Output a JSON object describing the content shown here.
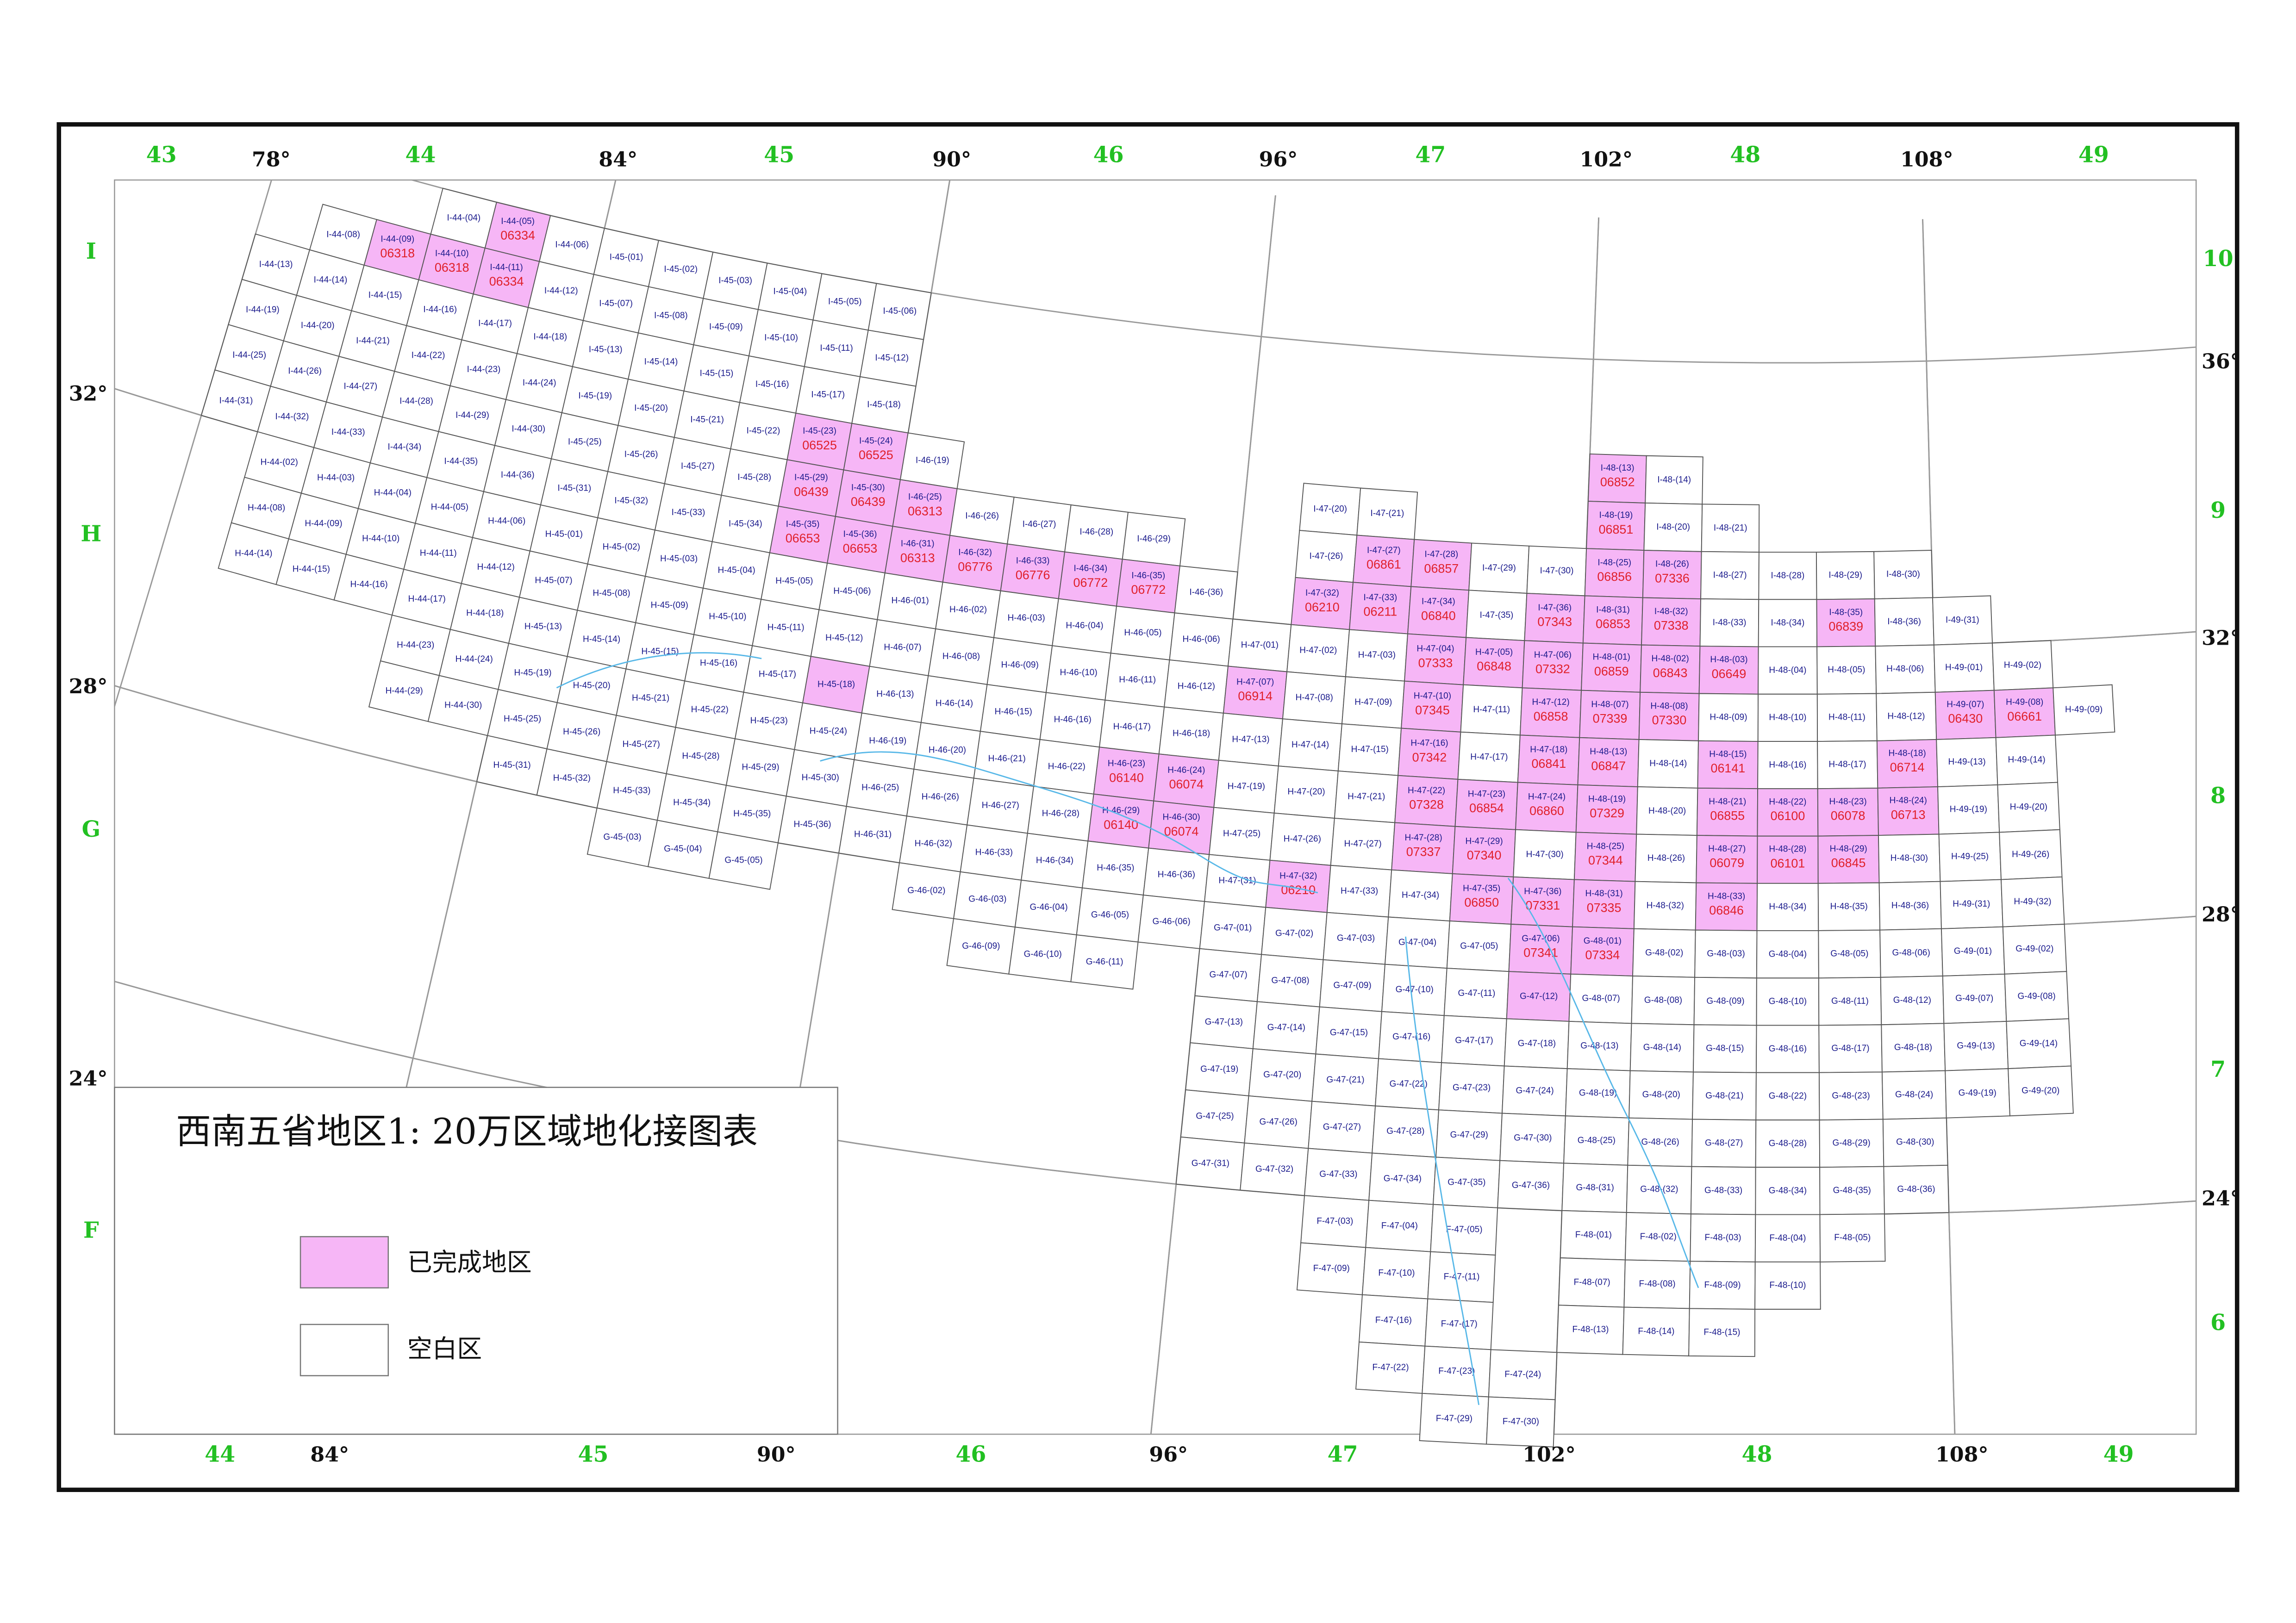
{
  "title": "西南五省地区1: 20万区域地化接图表",
  "done_color": "#f6b6f6",
  "legend": {
    "items": [
      {
        "label": "已完成地区",
        "color": "#f6b6f6"
      },
      {
        "label": "空白区",
        "color": "#ffffff"
      }
    ]
  },
  "top_zones": [
    "43",
    "44",
    "45",
    "46",
    "47",
    "48",
    "49"
  ],
  "top_lons": [
    {
      "value": 78,
      "label": "78°"
    },
    {
      "value": 84,
      "label": "84°"
    },
    {
      "value": 90,
      "label": "90°"
    },
    {
      "value": 96,
      "label": "96°"
    },
    {
      "value": 102,
      "label": "102°"
    },
    {
      "value": 108,
      "label": "108°"
    }
  ],
  "bottom_zones": [
    "44",
    "45",
    "46",
    "47",
    "48",
    "49"
  ],
  "bottom_lons": [
    {
      "value": 84,
      "label": "84°"
    },
    {
      "value": 90,
      "label": "90°"
    },
    {
      "value": 96,
      "label": "96°"
    },
    {
      "value": 102,
      "label": "102°"
    },
    {
      "value": 108,
      "label": "108°"
    }
  ],
  "left_letters": [
    "I",
    "H",
    "G",
    "F"
  ],
  "left_lats": [
    {
      "value": 32,
      "label": "32°"
    },
    {
      "value": 28,
      "label": "28°"
    },
    {
      "value": 24,
      "label": "24°"
    }
  ],
  "right_numbers": [
    "10",
    "9",
    "8",
    "7",
    "6"
  ],
  "right_lats": [
    {
      "value": 36,
      "label": "36°"
    },
    {
      "value": 32,
      "label": "32°"
    },
    {
      "value": 28,
      "label": "28°"
    },
    {
      "value": 24,
      "label": "24°"
    }
  ],
  "sheets": [
    {
      "id": "I-44-(04)"
    },
    {
      "id": "I-44-(05)",
      "code": "06334",
      "done": true
    },
    {
      "id": "I-44-(06)"
    },
    {
      "id": "I-44-(08)"
    },
    {
      "id": "I-44-(09)",
      "code": "06318",
      "done": true
    },
    {
      "id": "I-44-(10)",
      "code": "06318",
      "done": true
    },
    {
      "id": "I-44-(11)",
      "code": "06334",
      "done": true
    },
    {
      "id": "I-44-(12)"
    },
    {
      "id": "I-44-(13)"
    },
    {
      "id": "I-44-(14)"
    },
    {
      "id": "I-44-(15)"
    },
    {
      "id": "I-44-(16)"
    },
    {
      "id": "I-44-(17)"
    },
    {
      "id": "I-44-(18)"
    },
    {
      "id": "I-44-(19)"
    },
    {
      "id": "I-44-(20)"
    },
    {
      "id": "I-44-(21)"
    },
    {
      "id": "I-44-(22)"
    },
    {
      "id": "I-44-(23)"
    },
    {
      "id": "I-44-(24)"
    },
    {
      "id": "I-44-(25)"
    },
    {
      "id": "I-44-(26)"
    },
    {
      "id": "I-44-(27)"
    },
    {
      "id": "I-44-(28)"
    },
    {
      "id": "I-44-(29)"
    },
    {
      "id": "I-44-(30)"
    },
    {
      "id": "I-44-(31)"
    },
    {
      "id": "I-44-(32)"
    },
    {
      "id": "I-44-(33)"
    },
    {
      "id": "I-44-(34)"
    },
    {
      "id": "I-44-(35)"
    },
    {
      "id": "I-44-(36)"
    },
    {
      "id": "H-44-(02)"
    },
    {
      "id": "H-44-(03)"
    },
    {
      "id": "H-44-(04)"
    },
    {
      "id": "H-44-(05)"
    },
    {
      "id": "H-44-(06)"
    },
    {
      "id": "H-44-(08)"
    },
    {
      "id": "H-44-(09)"
    },
    {
      "id": "H-44-(10)"
    },
    {
      "id": "H-44-(11)"
    },
    {
      "id": "H-44-(12)"
    },
    {
      "id": "H-44-(14)"
    },
    {
      "id": "H-44-(15)"
    },
    {
      "id": "H-44-(16)"
    },
    {
      "id": "H-44-(17)"
    },
    {
      "id": "H-44-(18)"
    },
    {
      "id": "H-44-(23)"
    },
    {
      "id": "H-44-(24)"
    },
    {
      "id": "H-44-(29)"
    },
    {
      "id": "H-44-(30)"
    },
    {
      "id": "I-45-(01)"
    },
    {
      "id": "I-45-(02)"
    },
    {
      "id": "I-45-(03)"
    },
    {
      "id": "I-45-(04)"
    },
    {
      "id": "I-45-(05)"
    },
    {
      "id": "I-45-(06)"
    },
    {
      "id": "I-45-(07)"
    },
    {
      "id": "I-45-(08)"
    },
    {
      "id": "I-45-(09)"
    },
    {
      "id": "I-45-(10)"
    },
    {
      "id": "I-45-(11)"
    },
    {
      "id": "I-45-(12)"
    },
    {
      "id": "I-45-(13)"
    },
    {
      "id": "I-45-(14)"
    },
    {
      "id": "I-45-(15)"
    },
    {
      "id": "I-45-(16)"
    },
    {
      "id": "I-45-(17)"
    },
    {
      "id": "I-45-(18)"
    },
    {
      "id": "I-45-(19)"
    },
    {
      "id": "I-45-(20)"
    },
    {
      "id": "I-45-(21)"
    },
    {
      "id": "I-45-(22)"
    },
    {
      "id": "I-45-(23)",
      "code": "06525",
      "done": true
    },
    {
      "id": "I-45-(24)",
      "code": "06525",
      "done": true
    },
    {
      "id": "I-45-(25)"
    },
    {
      "id": "I-45-(26)"
    },
    {
      "id": "I-45-(27)"
    },
    {
      "id": "I-45-(28)"
    },
    {
      "id": "I-45-(29)",
      "code": "06439",
      "done": true
    },
    {
      "id": "I-45-(30)",
      "code": "06439",
      "done": true
    },
    {
      "id": "I-45-(31)"
    },
    {
      "id": "I-45-(32)"
    },
    {
      "id": "I-45-(33)"
    },
    {
      "id": "I-45-(34)"
    },
    {
      "id": "I-45-(35)",
      "code": "06653",
      "done": true
    },
    {
      "id": "I-45-(36)",
      "code": "06653",
      "done": true
    },
    {
      "id": "H-45-(01)"
    },
    {
      "id": "H-45-(02)"
    },
    {
      "id": "H-45-(03)"
    },
    {
      "id": "H-45-(04)"
    },
    {
      "id": "H-45-(05)"
    },
    {
      "id": "H-45-(06)"
    },
    {
      "id": "H-45-(07)"
    },
    {
      "id": "H-45-(08)"
    },
    {
      "id": "H-45-(09)"
    },
    {
      "id": "H-45-(10)"
    },
    {
      "id": "H-45-(11)"
    },
    {
      "id": "H-45-(12)"
    },
    {
      "id": "H-45-(13)"
    },
    {
      "id": "H-45-(14)"
    },
    {
      "id": "H-45-(15)"
    },
    {
      "id": "H-45-(16)"
    },
    {
      "id": "H-45-(17)"
    },
    {
      "id": "H-45-(18)",
      "done": true
    },
    {
      "id": "H-45-(19)"
    },
    {
      "id": "H-45-(20)"
    },
    {
      "id": "H-45-(21)"
    },
    {
      "id": "H-45-(22)"
    },
    {
      "id": "H-45-(23)"
    },
    {
      "id": "H-45-(24)"
    },
    {
      "id": "H-45-(25)"
    },
    {
      "id": "H-45-(26)"
    },
    {
      "id": "H-45-(27)"
    },
    {
      "id": "H-45-(28)"
    },
    {
      "id": "H-45-(29)"
    },
    {
      "id": "H-45-(30)"
    },
    {
      "id": "H-45-(31)"
    },
    {
      "id": "H-45-(32)"
    },
    {
      "id": "H-45-(33)"
    },
    {
      "id": "H-45-(34)"
    },
    {
      "id": "H-45-(35)"
    },
    {
      "id": "H-45-(36)"
    },
    {
      "id": "G-45-(03)"
    },
    {
      "id": "G-45-(04)"
    },
    {
      "id": "G-45-(05)"
    },
    {
      "id": "I-46-(19)"
    },
    {
      "id": "I-46-(25)",
      "code": "06313",
      "done": true
    },
    {
      "id": "I-46-(26)"
    },
    {
      "id": "I-46-(27)"
    },
    {
      "id": "I-46-(28)"
    },
    {
      "id": "I-46-(29)"
    },
    {
      "id": "I-46-(31)",
      "code": "06313",
      "done": true
    },
    {
      "id": "I-46-(32)",
      "code": "06776",
      "done": true
    },
    {
      "id": "I-46-(33)",
      "code": "06776",
      "done": true
    },
    {
      "id": "I-46-(34)",
      "code": "06772",
      "done": true
    },
    {
      "id": "I-46-(35)",
      "code": "06772",
      "done": true
    },
    {
      "id": "I-46-(36)"
    },
    {
      "id": "H-46-(01)"
    },
    {
      "id": "H-46-(02)"
    },
    {
      "id": "H-46-(03)"
    },
    {
      "id": "H-46-(04)"
    },
    {
      "id": "H-46-(05)"
    },
    {
      "id": "H-46-(06)"
    },
    {
      "id": "H-46-(07)"
    },
    {
      "id": "H-46-(08)"
    },
    {
      "id": "H-46-(09)"
    },
    {
      "id": "H-46-(10)"
    },
    {
      "id": "H-46-(11)"
    },
    {
      "id": "H-46-(12)"
    },
    {
      "id": "H-46-(13)"
    },
    {
      "id": "H-46-(14)"
    },
    {
      "id": "H-46-(15)"
    },
    {
      "id": "H-46-(16)"
    },
    {
      "id": "H-46-(17)"
    },
    {
      "id": "H-46-(18)"
    },
    {
      "id": "H-46-(19)"
    },
    {
      "id": "H-46-(20)"
    },
    {
      "id": "H-46-(21)"
    },
    {
      "id": "H-46-(22)"
    },
    {
      "id": "H-46-(23)",
      "code": "06140",
      "done": true
    },
    {
      "id": "H-46-(24)",
      "code": "06074",
      "done": true
    },
    {
      "id": "H-46-(25)"
    },
    {
      "id": "H-46-(26)"
    },
    {
      "id": "H-46-(27)"
    },
    {
      "id": "H-46-(28)"
    },
    {
      "id": "H-46-(29)",
      "code": "06140",
      "done": true
    },
    {
      "id": "H-46-(30)",
      "code": "06074",
      "done": true
    },
    {
      "id": "H-46-(31)"
    },
    {
      "id": "H-46-(32)"
    },
    {
      "id": "H-46-(33)"
    },
    {
      "id": "H-46-(34)"
    },
    {
      "id": "H-46-(35)"
    },
    {
      "id": "H-46-(36)"
    },
    {
      "id": "G-46-(02)"
    },
    {
      "id": "G-46-(03)"
    },
    {
      "id": "G-46-(04)"
    },
    {
      "id": "G-46-(05)"
    },
    {
      "id": "G-46-(06)"
    },
    {
      "id": "G-46-(09)"
    },
    {
      "id": "G-46-(10)"
    },
    {
      "id": "G-46-(11)"
    },
    {
      "id": "I-47-(20)"
    },
    {
      "id": "I-47-(21)"
    },
    {
      "id": "I-47-(26)"
    },
    {
      "id": "I-47-(27)",
      "code": "06861",
      "done": true
    },
    {
      "id": "I-47-(28)",
      "code": "06857",
      "done": true
    },
    {
      "id": "I-47-(29)"
    },
    {
      "id": "I-47-(30)"
    },
    {
      "id": "I-47-(32)",
      "code": "06210",
      "done": true
    },
    {
      "id": "I-47-(33)",
      "code": "06211",
      "done": true
    },
    {
      "id": "I-47-(34)",
      "code": "06840",
      "done": true
    },
    {
      "id": "I-47-(35)"
    },
    {
      "id": "I-47-(36)",
      "code": "07343",
      "done": true
    },
    {
      "id": "H-47-(01)"
    },
    {
      "id": "H-47-(02)"
    },
    {
      "id": "H-47-(03)"
    },
    {
      "id": "H-47-(04)",
      "code": "07333",
      "done": true
    },
    {
      "id": "H-47-(05)",
      "code": "06848",
      "done": true
    },
    {
      "id": "H-47-(06)",
      "code": "07332",
      "done": true
    },
    {
      "id": "H-47-(07)",
      "code": "06914",
      "done": true
    },
    {
      "id": "H-47-(08)"
    },
    {
      "id": "H-47-(09)"
    },
    {
      "id": "H-47-(10)",
      "code": "07345",
      "done": true
    },
    {
      "id": "H-47-(11)"
    },
    {
      "id": "H-47-(12)",
      "code": "06858",
      "done": true
    },
    {
      "id": "H-47-(13)"
    },
    {
      "id": "H-47-(14)"
    },
    {
      "id": "H-47-(15)"
    },
    {
      "id": "H-47-(16)",
      "code": "07342",
      "done": true
    },
    {
      "id": "H-47-(17)"
    },
    {
      "id": "H-47-(18)",
      "code": "06841",
      "done": true
    },
    {
      "id": "H-47-(19)"
    },
    {
      "id": "H-47-(20)"
    },
    {
      "id": "H-47-(21)"
    },
    {
      "id": "H-47-(22)",
      "code": "07328",
      "done": true
    },
    {
      "id": "H-47-(23)",
      "code": "06854",
      "done": true
    },
    {
      "id": "H-47-(24)",
      "code": "06860",
      "done": true
    },
    {
      "id": "H-47-(25)"
    },
    {
      "id": "H-47-(26)"
    },
    {
      "id": "H-47-(27)"
    },
    {
      "id": "H-47-(28)",
      "code": "07337",
      "done": true
    },
    {
      "id": "H-47-(29)",
      "code": "07340",
      "done": true
    },
    {
      "id": "H-47-(30)"
    },
    {
      "id": "H-47-(31)"
    },
    {
      "id": "H-47-(32)",
      "code": "06210",
      "done": true
    },
    {
      "id": "H-47-(33)"
    },
    {
      "id": "H-47-(34)"
    },
    {
      "id": "H-47-(35)",
      "code": "06850",
      "done": true
    },
    {
      "id": "H-47-(36)",
      "code": "07331",
      "done": true
    },
    {
      "id": "G-47-(01)"
    },
    {
      "id": "G-47-(02)"
    },
    {
      "id": "G-47-(03)"
    },
    {
      "id": "G-47-(04)"
    },
    {
      "id": "G-47-(05)"
    },
    {
      "id": "G-47-(06)",
      "code": "07341",
      "done": true
    },
    {
      "id": "G-47-(07)"
    },
    {
      "id": "G-47-(08)"
    },
    {
      "id": "G-47-(09)"
    },
    {
      "id": "G-47-(10)"
    },
    {
      "id": "G-47-(11)"
    },
    {
      "id": "G-47-(12)",
      "done": true
    },
    {
      "id": "G-47-(13)"
    },
    {
      "id": "G-47-(14)"
    },
    {
      "id": "G-47-(15)"
    },
    {
      "id": "G-47-(16)"
    },
    {
      "id": "G-47-(17)"
    },
    {
      "id": "G-47-(18)"
    },
    {
      "id": "G-47-(19)"
    },
    {
      "id": "G-47-(20)"
    },
    {
      "id": "G-47-(21)"
    },
    {
      "id": "G-47-(22)"
    },
    {
      "id": "G-47-(23)"
    },
    {
      "id": "G-47-(24)"
    },
    {
      "id": "G-47-(25)"
    },
    {
      "id": "G-47-(26)"
    },
    {
      "id": "G-47-(27)"
    },
    {
      "id": "G-47-(28)"
    },
    {
      "id": "G-47-(29)"
    },
    {
      "id": "G-47-(30)"
    },
    {
      "id": "G-47-(31)"
    },
    {
      "id": "G-47-(32)"
    },
    {
      "id": "G-47-(33)"
    },
    {
      "id": "G-47-(34)"
    },
    {
      "id": "G-47-(35)"
    },
    {
      "id": "G-47-(36)"
    },
    {
      "id": "F-47-(03)"
    },
    {
      "id": "F-47-(04)"
    },
    {
      "id": "F-47-(05)"
    },
    {
      "id": "F-47-(09)"
    },
    {
      "id": "F-47-(10)"
    },
    {
      "id": "F-47-(11)"
    },
    {
      "id": "F-47-(16)"
    },
    {
      "id": "F-47-(17)"
    },
    {
      "id": "F-47-(22)"
    },
    {
      "id": "F-47-(23)"
    },
    {
      "id": "F-47-(24)"
    },
    {
      "id": "F-47-(29)"
    },
    {
      "id": "F-47-(30)"
    },
    {
      "id": "I-48-(13)",
      "code": "06852",
      "done": true
    },
    {
      "id": "I-48-(14)"
    },
    {
      "id": "I-48-(19)",
      "code": "06851",
      "done": true
    },
    {
      "id": "I-48-(20)"
    },
    {
      "id": "I-48-(21)"
    },
    {
      "id": "I-48-(25)",
      "code": "06856",
      "done": true
    },
    {
      "id": "I-48-(26)",
      "code": "07336",
      "done": true
    },
    {
      "id": "I-48-(27)"
    },
    {
      "id": "I-48-(28)"
    },
    {
      "id": "I-48-(29)"
    },
    {
      "id": "I-48-(30)"
    },
    {
      "id": "I-48-(31)",
      "code": "06853",
      "done": true
    },
    {
      "id": "I-48-(32)",
      "code": "07338",
      "done": true
    },
    {
      "id": "I-48-(33)"
    },
    {
      "id": "I-48-(34)"
    },
    {
      "id": "I-48-(35)",
      "code": "06839",
      "done": true
    },
    {
      "id": "I-48-(36)"
    },
    {
      "id": "H-48-(01)",
      "code": "06859",
      "done": true
    },
    {
      "id": "H-48-(02)",
      "code": "06843",
      "done": true
    },
    {
      "id": "H-48-(03)",
      "code": "06649",
      "done": true
    },
    {
      "id": "H-48-(04)"
    },
    {
      "id": "H-48-(05)"
    },
    {
      "id": "H-48-(06)"
    },
    {
      "id": "H-48-(07)",
      "code": "07339",
      "done": true
    },
    {
      "id": "H-48-(08)",
      "code": "07330",
      "done": true
    },
    {
      "id": "H-48-(09)"
    },
    {
      "id": "H-48-(10)"
    },
    {
      "id": "H-48-(11)"
    },
    {
      "id": "H-48-(12)"
    },
    {
      "id": "H-48-(13)",
      "code": "06847",
      "done": true
    },
    {
      "id": "H-48-(14)"
    },
    {
      "id": "H-48-(15)",
      "code": "06141",
      "done": true
    },
    {
      "id": "H-48-(16)"
    },
    {
      "id": "H-48-(17)"
    },
    {
      "id": "H-48-(18)",
      "code": "06714",
      "done": true
    },
    {
      "id": "H-48-(19)",
      "code": "07329",
      "done": true
    },
    {
      "id": "H-48-(20)"
    },
    {
      "id": "H-48-(21)",
      "code": "06855",
      "done": true
    },
    {
      "id": "H-48-(22)",
      "code": "06100",
      "done": true
    },
    {
      "id": "H-48-(23)",
      "code": "06078",
      "done": true
    },
    {
      "id": "H-48-(24)",
      "code": "06713",
      "done": true
    },
    {
      "id": "H-48-(25)",
      "code": "07344",
      "done": true
    },
    {
      "id": "H-48-(26)"
    },
    {
      "id": "H-48-(27)",
      "code": "06079",
      "done": true
    },
    {
      "id": "H-48-(28)",
      "code": "06101",
      "done": true
    },
    {
      "id": "H-48-(29)",
      "code": "06845",
      "done": true
    },
    {
      "id": "H-48-(30)"
    },
    {
      "id": "H-48-(31)",
      "code": "07335",
      "done": true
    },
    {
      "id": "H-48-(32)"
    },
    {
      "id": "H-48-(33)",
      "code": "06846",
      "done": true
    },
    {
      "id": "H-48-(34)"
    },
    {
      "id": "H-48-(35)"
    },
    {
      "id": "H-48-(36)"
    },
    {
      "id": "G-48-(01)",
      "code": "07334",
      "done": true
    },
    {
      "id": "G-48-(02)"
    },
    {
      "id": "G-48-(03)"
    },
    {
      "id": "G-48-(04)"
    },
    {
      "id": "G-48-(05)"
    },
    {
      "id": "G-48-(06)"
    },
    {
      "id": "G-48-(07)"
    },
    {
      "id": "G-48-(08)"
    },
    {
      "id": "G-48-(09)"
    },
    {
      "id": "G-48-(10)"
    },
    {
      "id": "G-48-(11)"
    },
    {
      "id": "G-48-(12)"
    },
    {
      "id": "G-48-(13)"
    },
    {
      "id": "G-48-(14)"
    },
    {
      "id": "G-48-(15)"
    },
    {
      "id": "G-48-(16)"
    },
    {
      "id": "G-48-(17)"
    },
    {
      "id": "G-48-(18)"
    },
    {
      "id": "G-48-(19)"
    },
    {
      "id": "G-48-(20)"
    },
    {
      "id": "G-48-(21)"
    },
    {
      "id": "G-48-(22)"
    },
    {
      "id": "G-48-(23)"
    },
    {
      "id": "G-48-(24)"
    },
    {
      "id": "G-48-(25)"
    },
    {
      "id": "G-48-(26)"
    },
    {
      "id": "G-48-(27)"
    },
    {
      "id": "G-48-(28)"
    },
    {
      "id": "G-48-(29)"
    },
    {
      "id": "G-48-(30)"
    },
    {
      "id": "G-48-(31)"
    },
    {
      "id": "G-48-(32)"
    },
    {
      "id": "G-48-(33)"
    },
    {
      "id": "G-48-(34)"
    },
    {
      "id": "G-48-(35)"
    },
    {
      "id": "G-48-(36)"
    },
    {
      "id": "F-48-(01)"
    },
    {
      "id": "F-48-(02)"
    },
    {
      "id": "F-48-(03)"
    },
    {
      "id": "F-48-(04)"
    },
    {
      "id": "F-48-(05)"
    },
    {
      "id": "F-48-(07)"
    },
    {
      "id": "F-48-(08)"
    },
    {
      "id": "F-48-(09)"
    },
    {
      "id": "F-48-(10)"
    },
    {
      "id": "F-48-(13)"
    },
    {
      "id": "F-48-(14)"
    },
    {
      "id": "F-48-(15)"
    },
    {
      "id": "I-49-(31)"
    },
    {
      "id": "H-49-(01)"
    },
    {
      "id": "H-49-(02)"
    },
    {
      "id": "H-49-(07)",
      "code": "06430",
      "done": true
    },
    {
      "id": "H-49-(08)",
      "code": "06661",
      "done": true
    },
    {
      "id": "H-49-(09)"
    },
    {
      "id": "H-49-(13)"
    },
    {
      "id": "H-49-(14)"
    },
    {
      "id": "H-49-(19)"
    },
    {
      "id": "H-49-(20)"
    },
    {
      "id": "H-49-(25)"
    },
    {
      "id": "H-49-(26)"
    },
    {
      "id": "H-49-(31)"
    },
    {
      "id": "H-49-(32)"
    },
    {
      "id": "G-49-(01)"
    },
    {
      "id": "G-49-(02)"
    },
    {
      "id": "G-49-(07)"
    },
    {
      "id": "G-49-(08)"
    },
    {
      "id": "G-49-(13)"
    },
    {
      "id": "G-49-(14)"
    },
    {
      "id": "G-49-(19)"
    },
    {
      "id": "G-49-(20)"
    }
  ]
}
